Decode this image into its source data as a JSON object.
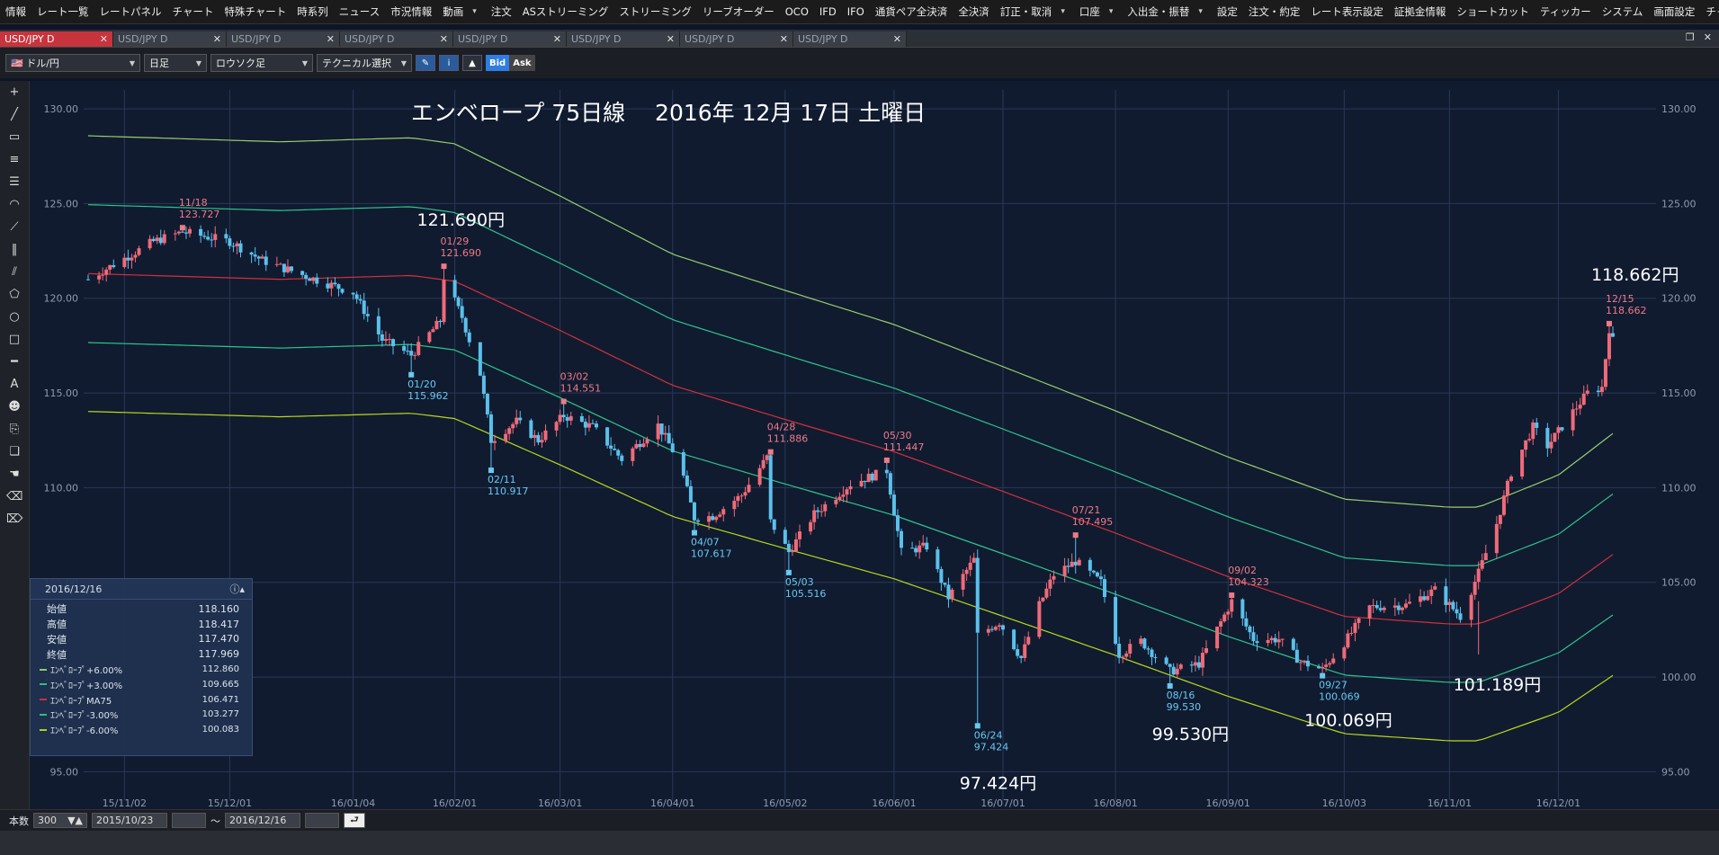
{
  "menu": {
    "items": [
      "情報",
      "レート一覧",
      "レートパネル",
      "チャート",
      "特殊チャート",
      "時系列",
      "ニュース",
      "市況情報",
      "動画",
      "注文",
      "ASストリーミング",
      "ストリーミング",
      "リーブオーダー",
      "OCO",
      "IFD",
      "IFO",
      "通貨ペア全決済",
      "全決済",
      "訂正・取消",
      "口座",
      "入出金・振替",
      "設定",
      "注文・約定",
      "レート表示設定",
      "証拠金情報",
      "ショートカット",
      "ティッカー",
      "システム",
      "画面設定",
      "チャート"
    ]
  },
  "tabs": [
    "USD/JPY D",
    "USD/JPY D",
    "USD/JPY D",
    "USD/JPY D",
    "USD/JPY D",
    "USD/JPY D",
    "USD/JPY D",
    "USD/JPY D"
  ],
  "toolbar": {
    "pair": "ドル/円",
    "period": "日足",
    "chart_style": "ロウソク足",
    "tech_select": "テクニカル選択",
    "bid": "Bid",
    "ask": "Ask"
  },
  "chart_title": "エンベロープ 75日線　 2016年 12月 17日 土曜日",
  "info": {
    "date": "2016/12/16",
    "rows": [
      {
        "label": "始値",
        "value": "118.160"
      },
      {
        "label": "高値",
        "value": "118.417"
      },
      {
        "label": "安値",
        "value": "117.470"
      },
      {
        "label": "終値",
        "value": "117.969"
      }
    ],
    "indicators": [
      {
        "label": "ｴﾝﾍﾞﾛｰﾌﾟ+6.00%",
        "value": "112.860",
        "color": "#9acd6a"
      },
      {
        "label": "ｴﾝﾍﾞﾛｰﾌﾟ+3.00%",
        "value": "109.665",
        "color": "#2ec48c"
      },
      {
        "label": "ｴﾝﾍﾞﾛｰﾌﾟMA75",
        "value": "106.471",
        "color": "#d2303a"
      },
      {
        "label": "ｴﾝﾍﾞﾛｰﾌﾟ-3.00%",
        "value": "103.277",
        "color": "#2ec48c"
      },
      {
        "label": "ｴﾝﾍﾞﾛｰﾌﾟ-6.00%",
        "value": "100.083",
        "color": "#b6d81e"
      }
    ]
  },
  "bottom": {
    "count_label": "本数",
    "count": "300",
    "from": "2015/10/23",
    "tilde": "～",
    "to": "2016/12/16"
  },
  "chart_data": {
    "type": "candlestick",
    "ylim": [
      93.5,
      131.0
    ],
    "y_ticks": [
      95.0,
      100.0,
      105.0,
      110.0,
      115.0,
      120.0,
      125.0,
      130.0
    ],
    "y_tick_labels": [
      "95.00",
      "100.00",
      "105.00",
      "110.00",
      "115.00",
      "120.00",
      "125.00",
      "130.00"
    ],
    "x_tick_labels": [
      "15/11/02",
      "15/12/01",
      "16/01/04",
      "16/02/01",
      "16/03/01",
      "16/04/01",
      "16/05/02",
      "16/06/01",
      "16/07/01",
      "16/08/01",
      "16/09/01",
      "16/10/03",
      "16/11/01",
      "16/12/01"
    ],
    "x_tick_dates": [
      "2015-11-02",
      "2015-12-01",
      "2016-01-04",
      "2016-02-01",
      "2016-03-01",
      "2016-04-01",
      "2016-05-02",
      "2016-06-01",
      "2016-07-01",
      "2016-08-01",
      "2016-09-01",
      "2016-10-03",
      "2016-11-01",
      "2016-12-01"
    ],
    "x_range": [
      "2015-10-23",
      "2016-12-16"
    ],
    "grid": true,
    "closes": [
      {
        "date": "2015-10-23",
        "value": 121.0
      },
      {
        "date": "2015-11-10",
        "value": 123.0
      },
      {
        "date": "2015-11-18",
        "value": 123.5
      },
      {
        "date": "2015-12-01",
        "value": 123.0
      },
      {
        "date": "2015-12-10",
        "value": 122.0
      },
      {
        "date": "2015-12-20",
        "value": 121.3
      },
      {
        "date": "2016-01-04",
        "value": 120.3
      },
      {
        "date": "2016-01-12",
        "value": 117.8
      },
      {
        "date": "2016-01-20",
        "value": 117.0
      },
      {
        "date": "2016-01-28",
        "value": 118.8
      },
      {
        "date": "2016-01-29",
        "value": 121.1
      },
      {
        "date": "2016-02-03",
        "value": 119.0
      },
      {
        "date": "2016-02-08",
        "value": 116.0
      },
      {
        "date": "2016-02-11",
        "value": 112.5
      },
      {
        "date": "2016-02-18",
        "value": 113.5
      },
      {
        "date": "2016-02-24",
        "value": 112.5
      },
      {
        "date": "2016-03-02",
        "value": 113.8
      },
      {
        "date": "2016-03-10",
        "value": 113.2
      },
      {
        "date": "2016-03-18",
        "value": 111.5
      },
      {
        "date": "2016-03-28",
        "value": 113.3
      },
      {
        "date": "2016-04-03",
        "value": 111.3
      },
      {
        "date": "2016-04-07",
        "value": 108.4
      },
      {
        "date": "2016-04-12",
        "value": 108.5
      },
      {
        "date": "2016-04-20",
        "value": 109.6
      },
      {
        "date": "2016-04-27",
        "value": 111.6
      },
      {
        "date": "2016-04-28",
        "value": 108.2
      },
      {
        "date": "2016-05-03",
        "value": 106.6
      },
      {
        "date": "2016-05-10",
        "value": 108.6
      },
      {
        "date": "2016-05-20",
        "value": 110.2
      },
      {
        "date": "2016-05-30",
        "value": 110.9
      },
      {
        "date": "2016-06-03",
        "value": 106.6
      },
      {
        "date": "2016-06-10",
        "value": 106.9
      },
      {
        "date": "2016-06-16",
        "value": 104.2
      },
      {
        "date": "2016-06-23",
        "value": 106.2
      },
      {
        "date": "2016-06-24",
        "value": 102.2
      },
      {
        "date": "2016-06-30",
        "value": 102.9
      },
      {
        "date": "2016-07-06",
        "value": 101.0
      },
      {
        "date": "2016-07-11",
        "value": 103.8
      },
      {
        "date": "2016-07-15",
        "value": 105.4
      },
      {
        "date": "2016-07-21",
        "value": 106.1
      },
      {
        "date": "2016-07-28",
        "value": 105.0
      },
      {
        "date": "2016-08-02",
        "value": 101.2
      },
      {
        "date": "2016-08-08",
        "value": 101.9
      },
      {
        "date": "2016-08-16",
        "value": 100.3
      },
      {
        "date": "2016-08-24",
        "value": 100.7
      },
      {
        "date": "2016-09-02",
        "value": 104.0
      },
      {
        "date": "2016-09-08",
        "value": 102.0
      },
      {
        "date": "2016-09-15",
        "value": 102.0
      },
      {
        "date": "2016-09-21",
        "value": 100.8
      },
      {
        "date": "2016-09-27",
        "value": 100.4
      },
      {
        "date": "2016-10-03",
        "value": 101.8
      },
      {
        "date": "2016-10-10",
        "value": 103.7
      },
      {
        "date": "2016-10-20",
        "value": 103.8
      },
      {
        "date": "2016-10-28",
        "value": 104.6
      },
      {
        "date": "2016-11-04",
        "value": 103.2
      },
      {
        "date": "2016-11-09",
        "value": 105.5
      },
      {
        "date": "2016-11-14",
        "value": 108.1
      },
      {
        "date": "2016-11-18",
        "value": 110.8
      },
      {
        "date": "2016-11-24",
        "value": 113.2
      },
      {
        "date": "2016-11-28",
        "value": 112.2
      },
      {
        "date": "2016-12-05",
        "value": 114.0
      },
      {
        "date": "2016-12-09",
        "value": 115.0
      },
      {
        "date": "2016-12-13",
        "value": 115.3
      },
      {
        "date": "2016-12-15",
        "value": 118.4
      },
      {
        "date": "2016-12-16",
        "value": 117.969
      }
    ],
    "envelope": {
      "period": 75,
      "percents": [
        6.0,
        3.0,
        0,
        -3.0,
        -6.0
      ],
      "ma75": [
        {
          "date": "2015-10-23",
          "value": 121.3
        },
        {
          "date": "2015-12-15",
          "value": 121.0
        },
        {
          "date": "2016-01-20",
          "value": 121.2
        },
        {
          "date": "2016-02-01",
          "value": 120.9
        },
        {
          "date": "2016-03-01",
          "value": 118.3
        },
        {
          "date": "2016-04-01",
          "value": 115.4
        },
        {
          "date": "2016-05-02",
          "value": 113.6
        },
        {
          "date": "2016-06-01",
          "value": 111.9
        },
        {
          "date": "2016-07-01",
          "value": 109.8
        },
        {
          "date": "2016-08-01",
          "value": 107.6
        },
        {
          "date": "2016-09-01",
          "value": 105.3
        },
        {
          "date": "2016-10-03",
          "value": 103.2
        },
        {
          "date": "2016-11-01",
          "value": 102.8
        },
        {
          "date": "2016-11-09",
          "value": 102.8
        },
        {
          "date": "2016-12-01",
          "value": 104.4
        },
        {
          "date": "2016-12-16",
          "value": 106.471
        }
      ]
    },
    "annotations": [
      {
        "date": "2015-11-18",
        "value": 123.727,
        "label": "11/18",
        "value_label": "123.727",
        "kind": "high"
      },
      {
        "date": "2016-01-20",
        "value": 115.962,
        "label": "01/20",
        "value_label": "115.962",
        "kind": "low"
      },
      {
        "date": "2016-01-29",
        "value": 121.69,
        "label": "01/29",
        "value_label": "121.690",
        "kind": "high"
      },
      {
        "date": "2016-02-11",
        "value": 110.917,
        "label": "02/11",
        "value_label": "110.917",
        "kind": "low"
      },
      {
        "date": "2016-03-02",
        "value": 114.551,
        "label": "03/02",
        "value_label": "114.551",
        "kind": "high"
      },
      {
        "date": "2016-04-07",
        "value": 107.617,
        "label": "04/07",
        "value_label": "107.617",
        "kind": "low"
      },
      {
        "date": "2016-04-28",
        "value": 111.886,
        "label": "04/28",
        "value_label": "111.886",
        "kind": "high"
      },
      {
        "date": "2016-05-03",
        "value": 105.516,
        "label": "05/03",
        "value_label": "105.516",
        "kind": "low"
      },
      {
        "date": "2016-05-30",
        "value": 111.447,
        "label": "05/30",
        "value_label": "111.447",
        "kind": "high"
      },
      {
        "date": "2016-06-24",
        "value": 97.424,
        "label": "06/24",
        "value_label": "97.424",
        "kind": "low"
      },
      {
        "date": "2016-07-21",
        "value": 107.495,
        "label": "07/21",
        "value_label": "107.495",
        "kind": "high"
      },
      {
        "date": "2016-08-16",
        "value": 99.53,
        "label": "08/16",
        "value_label": "99.530",
        "kind": "low"
      },
      {
        "date": "2016-09-02",
        "value": 104.323,
        "label": "09/02",
        "value_label": "104.323",
        "kind": "high"
      },
      {
        "date": "2016-09-27",
        "value": 100.069,
        "label": "09/27",
        "value_label": "100.069",
        "kind": "low"
      },
      {
        "date": "2016-12-15",
        "value": 118.662,
        "label": "12/15",
        "value_label": "118.662",
        "kind": "high"
      }
    ],
    "big_labels": [
      {
        "text": "121.690円",
        "date": "2016-01-29",
        "value": 121.69
      },
      {
        "text": "97.424円",
        "date": "2016-06-24",
        "value": 97.424
      },
      {
        "text": "99.530円",
        "date": "2016-08-16",
        "value": 99.53
      },
      {
        "text": "100.069円",
        "date": "2016-09-27",
        "value": 100.069
      },
      {
        "text": "101.189円",
        "date": "2016-11-09",
        "value": 101.189
      },
      {
        "text": "118.662円",
        "date": "2016-12-15",
        "value": 118.662
      }
    ],
    "colors": {
      "up": "#f06a78",
      "down": "#5bc0eb",
      "ma": "#d2303a",
      "env3": "#2ec48c",
      "env6": "#b6d81e",
      "env6_upper": "#9acd6a"
    }
  }
}
